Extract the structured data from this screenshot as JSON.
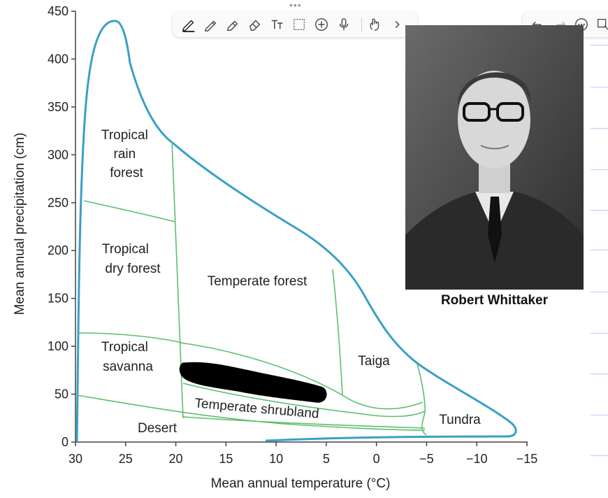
{
  "chart_data": {
    "type": "diagram",
    "xlabel": "Mean annual temperature (°C)",
    "ylabel": "Mean annual precipitation (cm)",
    "x_ticks": [
      "30",
      "25",
      "20",
      "15",
      "10",
      "5",
      "0",
      "−5",
      "−10",
      "−15"
    ],
    "y_ticks": [
      "0",
      "50",
      "100",
      "150",
      "200",
      "250",
      "300",
      "350",
      "400",
      "450"
    ],
    "xlim": [
      30,
      -15
    ],
    "ylim": [
      0,
      450
    ],
    "biomes": [
      {
        "label_lines": [
          "Tropical",
          "rain",
          "forest"
        ]
      },
      {
        "label_lines": [
          "Tropical",
          "dry forest"
        ]
      },
      {
        "label_lines": [
          "Temperate forest"
        ]
      },
      {
        "label_lines": [
          "Tropical",
          "savanna"
        ]
      },
      {
        "label_lines": [
          "Taiga"
        ]
      },
      {
        "label_lines": [
          "Temperate shrubland"
        ]
      },
      {
        "label_lines": [
          "Desert"
        ]
      },
      {
        "label_lines": [
          "Tundra"
        ]
      }
    ],
    "colors": {
      "outline": "#3a9fc8",
      "boundaries": "#5cbf6f",
      "redaction": "#000000"
    }
  },
  "photo": {
    "caption": "Robert Whittaker"
  },
  "toolbar": {
    "tools": [
      "pen-icon",
      "pencil-icon",
      "highlighter-icon",
      "eraser-icon",
      "text-icon",
      "lasso-select-icon",
      "add-icon",
      "microphone-icon",
      "touch-icon",
      "more-chevron-icon"
    ],
    "right_tools": [
      "undo-icon",
      "redo-icon",
      "more-options-icon",
      "shapes-icon"
    ]
  }
}
